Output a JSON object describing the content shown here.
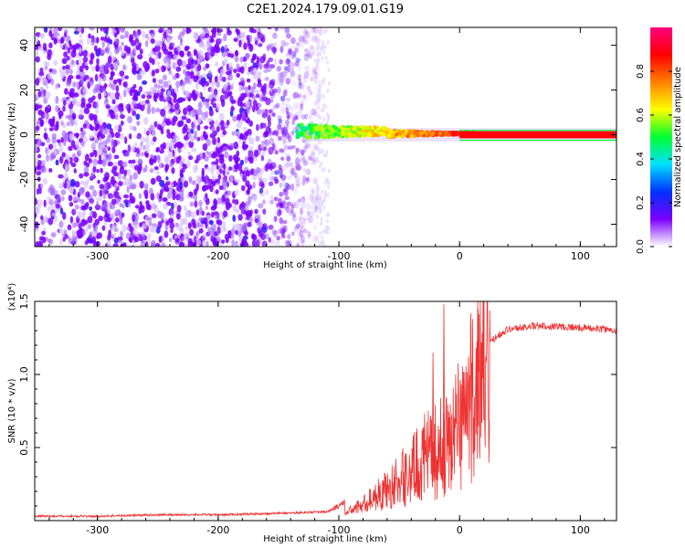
{
  "title": "C2E1.2024.179.09.01.G19",
  "chart_data": [
    {
      "type": "heatmap",
      "xlabel": "Height of straight line (km)",
      "ylabel": "Frequency (Hz)",
      "xlim": [
        -352,
        130
      ],
      "ylim": [
        -50,
        48
      ],
      "xticks": [
        -300,
        -200,
        -100,
        0,
        100
      ],
      "xtick_labels": [
        "-300",
        "-200",
        "-100",
        "0",
        "100"
      ],
      "yticks": [
        -40,
        -20,
        0,
        20,
        40
      ],
      "ytick_labels": [
        "-40",
        "-20",
        "0",
        "20",
        "40"
      ],
      "colorbar": {
        "label": "Normalized spectral amplitude",
        "range": [
          0,
          1
        ],
        "ticks": [
          0.0,
          0.2,
          0.4,
          0.6,
          0.8
        ],
        "tick_labels": [
          "0.0",
          "0.2",
          "0.4",
          "0.6",
          "0.8"
        ],
        "colormap": [
          "#ffffff",
          "#7b00ff",
          "#0030ff",
          "#00e0ff",
          "#00ff30",
          "#ffff00",
          "#ff8000",
          "#ff0000",
          "#ff0080"
        ]
      },
      "features": [
        {
          "kind": "noise",
          "x_range": [
            -352,
            -115
          ],
          "y_range": [
            -50,
            48
          ],
          "level": 0.15
        },
        {
          "kind": "narrow-band signal",
          "x_range": [
            -135,
            130
          ],
          "y": 0,
          "level_start": 0.4,
          "level_end": 0.9
        }
      ]
    },
    {
      "type": "line",
      "xlabel": "Height of straight line (km)",
      "ylabel": "SNR (10 * v/v)",
      "y_scale_note": "(x10⁴)",
      "xlim": [
        -352,
        130
      ],
      "ylim": [
        0,
        1.5
      ],
      "xticks": [
        -300,
        -200,
        -100,
        0,
        100
      ],
      "xtick_labels": [
        "-300",
        "-200",
        "-100",
        "0",
        "100"
      ],
      "yticks": [
        0.5,
        1.0,
        1.5
      ],
      "ytick_labels": [
        "0.5",
        "1.0",
        "1.5"
      ],
      "series": [
        {
          "color": "#ee3333",
          "x": [
            -352,
            -300,
            -250,
            -200,
            -150,
            -110,
            -100,
            -90,
            -80,
            -70,
            -60,
            -50,
            -40,
            -30,
            -20,
            -10,
            0,
            10,
            20,
            30,
            40,
            60,
            80,
            100,
            120,
            130
          ],
          "y": [
            0.03,
            0.03,
            0.04,
            0.04,
            0.05,
            0.06,
            0.1,
            0.16,
            0.2,
            0.26,
            0.28,
            0.32,
            0.4,
            0.5,
            0.55,
            0.62,
            0.8,
            1.0,
            1.15,
            1.26,
            1.31,
            1.33,
            1.33,
            1.32,
            1.31,
            1.3
          ]
        }
      ],
      "peaks": [
        {
          "x": -22,
          "y": 1.15
        },
        {
          "x": -13,
          "y": 1.48
        },
        {
          "x": 15,
          "y": 1.5
        }
      ]
    }
  ]
}
